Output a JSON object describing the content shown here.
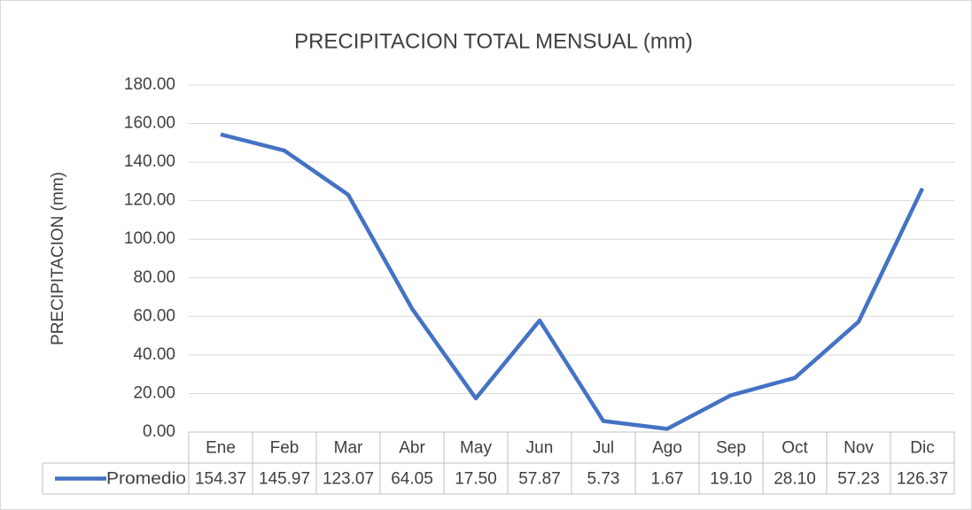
{
  "chart_data": {
    "type": "line",
    "title": "PRECIPITACION TOTAL MENSUAL (mm)",
    "y_label": "PRECIPITACION (mm)",
    "categories": [
      "Ene",
      "Feb",
      "Mar",
      "Abr",
      "May",
      "Jun",
      "Jul",
      "Ago",
      "Sep",
      "Oct",
      "Nov",
      "Dic"
    ],
    "series": [
      {
        "name": "Promedio",
        "color": "#4472c4",
        "values": [
          154.37,
          145.97,
          123.07,
          64.05,
          17.5,
          57.87,
          5.73,
          1.67,
          19.1,
          28.1,
          57.23,
          126.37
        ],
        "value_labels": [
          "154.37",
          "145.97",
          "123.07",
          "64.05",
          "17.50",
          "57.87",
          "5.73",
          "1.67",
          "19.10",
          "28.10",
          "57.23",
          "126.37"
        ]
      }
    ],
    "ylim": [
      0,
      180
    ],
    "yticks": [
      {
        "value": 0,
        "label": "0.00"
      },
      {
        "value": 20,
        "label": "20.00"
      },
      {
        "value": 40,
        "label": "40.00"
      },
      {
        "value": 60,
        "label": "60.00"
      },
      {
        "value": 80,
        "label": "80.00"
      },
      {
        "value": 100,
        "label": "100.00"
      },
      {
        "value": 120,
        "label": "120.00"
      },
      {
        "value": 140,
        "label": "140.00"
      },
      {
        "value": 160,
        "label": "160.00"
      },
      {
        "value": 180,
        "label": "180.00"
      }
    ],
    "grid": true
  }
}
